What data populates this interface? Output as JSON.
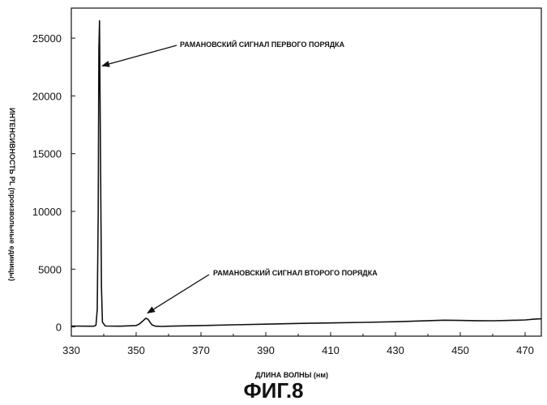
{
  "figure": {
    "caption": "ФИГ.8"
  },
  "chart_data": {
    "type": "line",
    "xlabel": "ДЛИНА ВОЛНЫ (нм)",
    "ylabel": "ИНТЕНСИВНОСТЬ PL (произвольные единицы)",
    "xlim": [
      330,
      475
    ],
    "ylim": [
      -800,
      27600
    ],
    "x_ticks": [
      330,
      350,
      370,
      390,
      410,
      430,
      450,
      470
    ],
    "y_ticks": [
      0,
      5000,
      10000,
      15000,
      20000,
      25000
    ],
    "grid": false,
    "series": [
      {
        "points": [
          [
            330,
            80
          ],
          [
            335,
            60
          ],
          [
            337,
            60
          ],
          [
            337.6,
            150
          ],
          [
            338.0,
            1500
          ],
          [
            338.3,
            10000
          ],
          [
            338.5,
            24000
          ],
          [
            338.7,
            26500
          ],
          [
            339.0,
            15000
          ],
          [
            339.3,
            3500
          ],
          [
            339.6,
            400
          ],
          [
            340.5,
            80
          ],
          [
            345,
            60
          ],
          [
            350,
            120
          ],
          [
            351,
            250
          ],
          [
            352,
            500
          ],
          [
            353,
            750
          ],
          [
            353.7,
            650
          ],
          [
            354.4,
            350
          ],
          [
            355,
            160
          ],
          [
            356,
            60
          ],
          [
            358,
            40
          ],
          [
            360,
            60
          ],
          [
            370,
            120
          ],
          [
            380,
            180
          ],
          [
            390,
            240
          ],
          [
            400,
            300
          ],
          [
            410,
            340
          ],
          [
            420,
            390
          ],
          [
            430,
            450
          ],
          [
            440,
            540
          ],
          [
            445,
            580
          ],
          [
            450,
            560
          ],
          [
            455,
            540
          ],
          [
            460,
            530
          ],
          [
            465,
            560
          ],
          [
            470,
            600
          ],
          [
            473,
            680
          ],
          [
            475,
            700
          ]
        ]
      }
    ],
    "annotations": [
      {
        "text": "РАМАНОВСКИЙ СИГНАЛ ПЕРВОГО ПОРЯДКА",
        "target": [
          339.5,
          22600
        ]
      },
      {
        "text": "РАМАНОВСКИЙ СИГНАЛ ВТОРОГО ПОРЯДКА",
        "target": [
          353.5,
          1200
        ]
      }
    ]
  }
}
